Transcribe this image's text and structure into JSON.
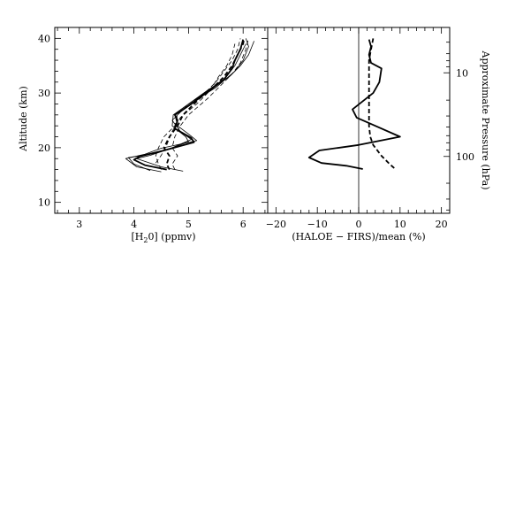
{
  "chart_data": [
    {
      "type": "line",
      "xlabel_parts": [
        "[H",
        "2",
        "0]  (ppmv)"
      ],
      "ylabel": "Altitude (km)",
      "xlim": [
        2.55,
        6.45
      ],
      "ylim": [
        8,
        42
      ],
      "xticks_major": [
        3,
        4,
        5,
        6
      ],
      "xticks_minor_step": 0.2,
      "yticks_major": [
        10,
        20,
        30,
        40
      ],
      "yticks_minor_step": 2,
      "xtick_labels": [
        "3",
        "4",
        "5",
        "6"
      ],
      "ytick_labels": [
        "10",
        "20",
        "30",
        "40"
      ],
      "series": [
        {
          "style": "solid-thick",
          "points": [
            [
              4.6,
              16
            ],
            [
              4.2,
              16.8
            ],
            [
              4.0,
              17.8
            ],
            [
              4.1,
              18.4
            ],
            [
              4.55,
              19.5
            ],
            [
              5.1,
              21
            ],
            [
              5.05,
              21.8
            ],
            [
              4.75,
              23.5
            ],
            [
              4.8,
              25
            ],
            [
              4.75,
              26
            ],
            [
              5.05,
              28
            ],
            [
              5.3,
              30
            ],
            [
              5.65,
              32.5
            ],
            [
              5.8,
              34.5
            ],
            [
              5.85,
              36
            ],
            [
              5.95,
              38
            ],
            [
              6.0,
              39.8
            ]
          ]
        },
        {
          "style": "solid-thin",
          "points": [
            [
              4.9,
              15.7
            ],
            [
              4.5,
              16.5
            ],
            [
              4.05,
              18
            ],
            [
              4.3,
              18.6
            ],
            [
              4.6,
              19.6
            ],
            [
              5.0,
              21.1
            ],
            [
              4.95,
              22
            ],
            [
              4.7,
              24
            ],
            [
              4.72,
              26
            ],
            [
              5.0,
              28
            ],
            [
              5.35,
              30.5
            ],
            [
              5.75,
              33
            ],
            [
              5.95,
              35
            ],
            [
              6.1,
              37
            ],
            [
              6.2,
              39.5
            ]
          ]
        },
        {
          "style": "solid-thin",
          "points": [
            [
              4.5,
              15.6
            ],
            [
              4.05,
              16.5
            ],
            [
              3.85,
              18
            ],
            [
              4.2,
              18.8
            ],
            [
              4.5,
              19.9
            ],
            [
              5.15,
              21.3
            ],
            [
              5.0,
              22.5
            ],
            [
              4.8,
              24
            ],
            [
              4.75,
              26
            ],
            [
              5.1,
              28.5
            ],
            [
              5.5,
              31
            ],
            [
              5.85,
              34
            ],
            [
              6.0,
              36
            ],
            [
              6.1,
              38.5
            ],
            [
              6.05,
              40
            ]
          ]
        },
        {
          "style": "solid-thin",
          "points": [
            [
              4.3,
              15.8
            ],
            [
              4.0,
              17
            ],
            [
              3.9,
              18.2
            ],
            [
              4.35,
              18.9
            ],
            [
              4.7,
              20
            ],
            [
              5.05,
              21.5
            ],
            [
              4.85,
              23
            ],
            [
              4.7,
              25
            ],
            [
              4.85,
              26.5
            ],
            [
              5.2,
              29
            ],
            [
              5.6,
              32
            ],
            [
              5.85,
              35
            ],
            [
              5.95,
              37
            ],
            [
              6.05,
              39
            ]
          ]
        },
        {
          "style": "dashed-thick",
          "points": [
            [
              4.65,
              16
            ],
            [
              4.6,
              17
            ],
            [
              4.65,
              18.5
            ],
            [
              4.55,
              20
            ],
            [
              4.65,
              22
            ],
            [
              4.8,
              24
            ],
            [
              4.9,
              26
            ],
            [
              5.2,
              29
            ],
            [
              5.45,
              31
            ],
            [
              5.65,
              33
            ],
            [
              5.8,
              35
            ],
            [
              5.9,
              37
            ],
            [
              6.0,
              39
            ],
            [
              6.02,
              40
            ]
          ]
        },
        {
          "style": "dashed-thin",
          "points": [
            [
              4.5,
              16
            ],
            [
              4.45,
              17
            ],
            [
              4.4,
              18.5
            ],
            [
              4.45,
              20
            ],
            [
              4.55,
              22
            ],
            [
              4.75,
              24
            ],
            [
              4.8,
              26
            ],
            [
              5.0,
              28
            ],
            [
              5.3,
              30
            ],
            [
              5.5,
              32
            ],
            [
              5.65,
              34
            ],
            [
              5.8,
              36
            ],
            [
              5.9,
              38
            ],
            [
              5.95,
              40
            ]
          ]
        },
        {
          "style": "dashed-thin",
          "points": [
            [
              4.75,
              16
            ],
            [
              4.7,
              17
            ],
            [
              4.8,
              18.5
            ],
            [
              4.7,
              20
            ],
            [
              4.75,
              22
            ],
            [
              4.85,
              24
            ],
            [
              5.0,
              26
            ],
            [
              5.35,
              29
            ],
            [
              5.6,
              31.5
            ],
            [
              5.8,
              33.5
            ],
            [
              5.95,
              35.5
            ],
            [
              6.05,
              38
            ],
            [
              6.1,
              40
            ]
          ]
        },
        {
          "style": "dashed-thin",
          "points": [
            [
              4.4,
              17.2
            ],
            [
              4.5,
              18.6
            ],
            [
              4.6,
              20.5
            ],
            [
              4.7,
              23
            ],
            [
              4.85,
              25.5
            ],
            [
              5.15,
              28
            ],
            [
              5.4,
              30.5
            ],
            [
              5.55,
              33
            ],
            [
              5.7,
              35
            ],
            [
              5.8,
              37
            ],
            [
              5.85,
              39
            ]
          ]
        }
      ]
    },
    {
      "type": "line",
      "xlabel": "(HALOE − FIRS)/mean (%)",
      "ylabel_right": "Approximate Pressure (hPa)",
      "xlim": [
        -22,
        22
      ],
      "ylim": [
        8,
        42
      ],
      "xticks_major": [
        -20,
        -10,
        0,
        10,
        20
      ],
      "xticks_minor_step": 2,
      "xtick_labels": [
        "−20",
        "−10",
        "0",
        "10",
        "20"
      ],
      "right_ticks": [
        {
          "label": "10",
          "altitude": 33.7
        },
        {
          "label": "100",
          "altitude": 18.4
        }
      ],
      "right_minor_altitudes": [
        39.3,
        37.2,
        35.9,
        34.8,
        28.7,
        25.8,
        23.8,
        22.2,
        20.9,
        19.6,
        13.5,
        10.6,
        8.6
      ],
      "zero_line": 0,
      "series": [
        {
          "style": "solid-thick",
          "points": [
            [
              2.5,
              39.8
            ],
            [
              3.0,
              38.5
            ],
            [
              2.5,
              37
            ],
            [
              3.0,
              35.5
            ],
            [
              5.5,
              34.5
            ],
            [
              5,
              32
            ],
            [
              3.5,
              30
            ],
            [
              -1.5,
              27
            ],
            [
              -0.5,
              25.5
            ],
            [
              2.5,
              24.5
            ],
            [
              10,
              22
            ],
            [
              0,
              20.5
            ],
            [
              -9.5,
              19.5
            ],
            [
              -12,
              18.2
            ],
            [
              -9,
              17.2
            ],
            [
              -3,
              16.7
            ],
            [
              1,
              16.1
            ]
          ]
        },
        {
          "style": "dashed-thick",
          "points": [
            [
              3.5,
              40
            ],
            [
              3.0,
              38
            ],
            [
              2.5,
              36
            ],
            [
              2.5,
              34
            ],
            [
              2.5,
              32
            ],
            [
              2.5,
              30
            ],
            [
              2.5,
              28
            ],
            [
              2.5,
              26
            ],
            [
              2.5,
              24
            ],
            [
              2.8,
              22
            ],
            [
              3.5,
              20.5
            ],
            [
              5.5,
              18.5
            ],
            [
              7.5,
              17
            ],
            [
              9,
              16
            ]
          ]
        }
      ]
    }
  ]
}
